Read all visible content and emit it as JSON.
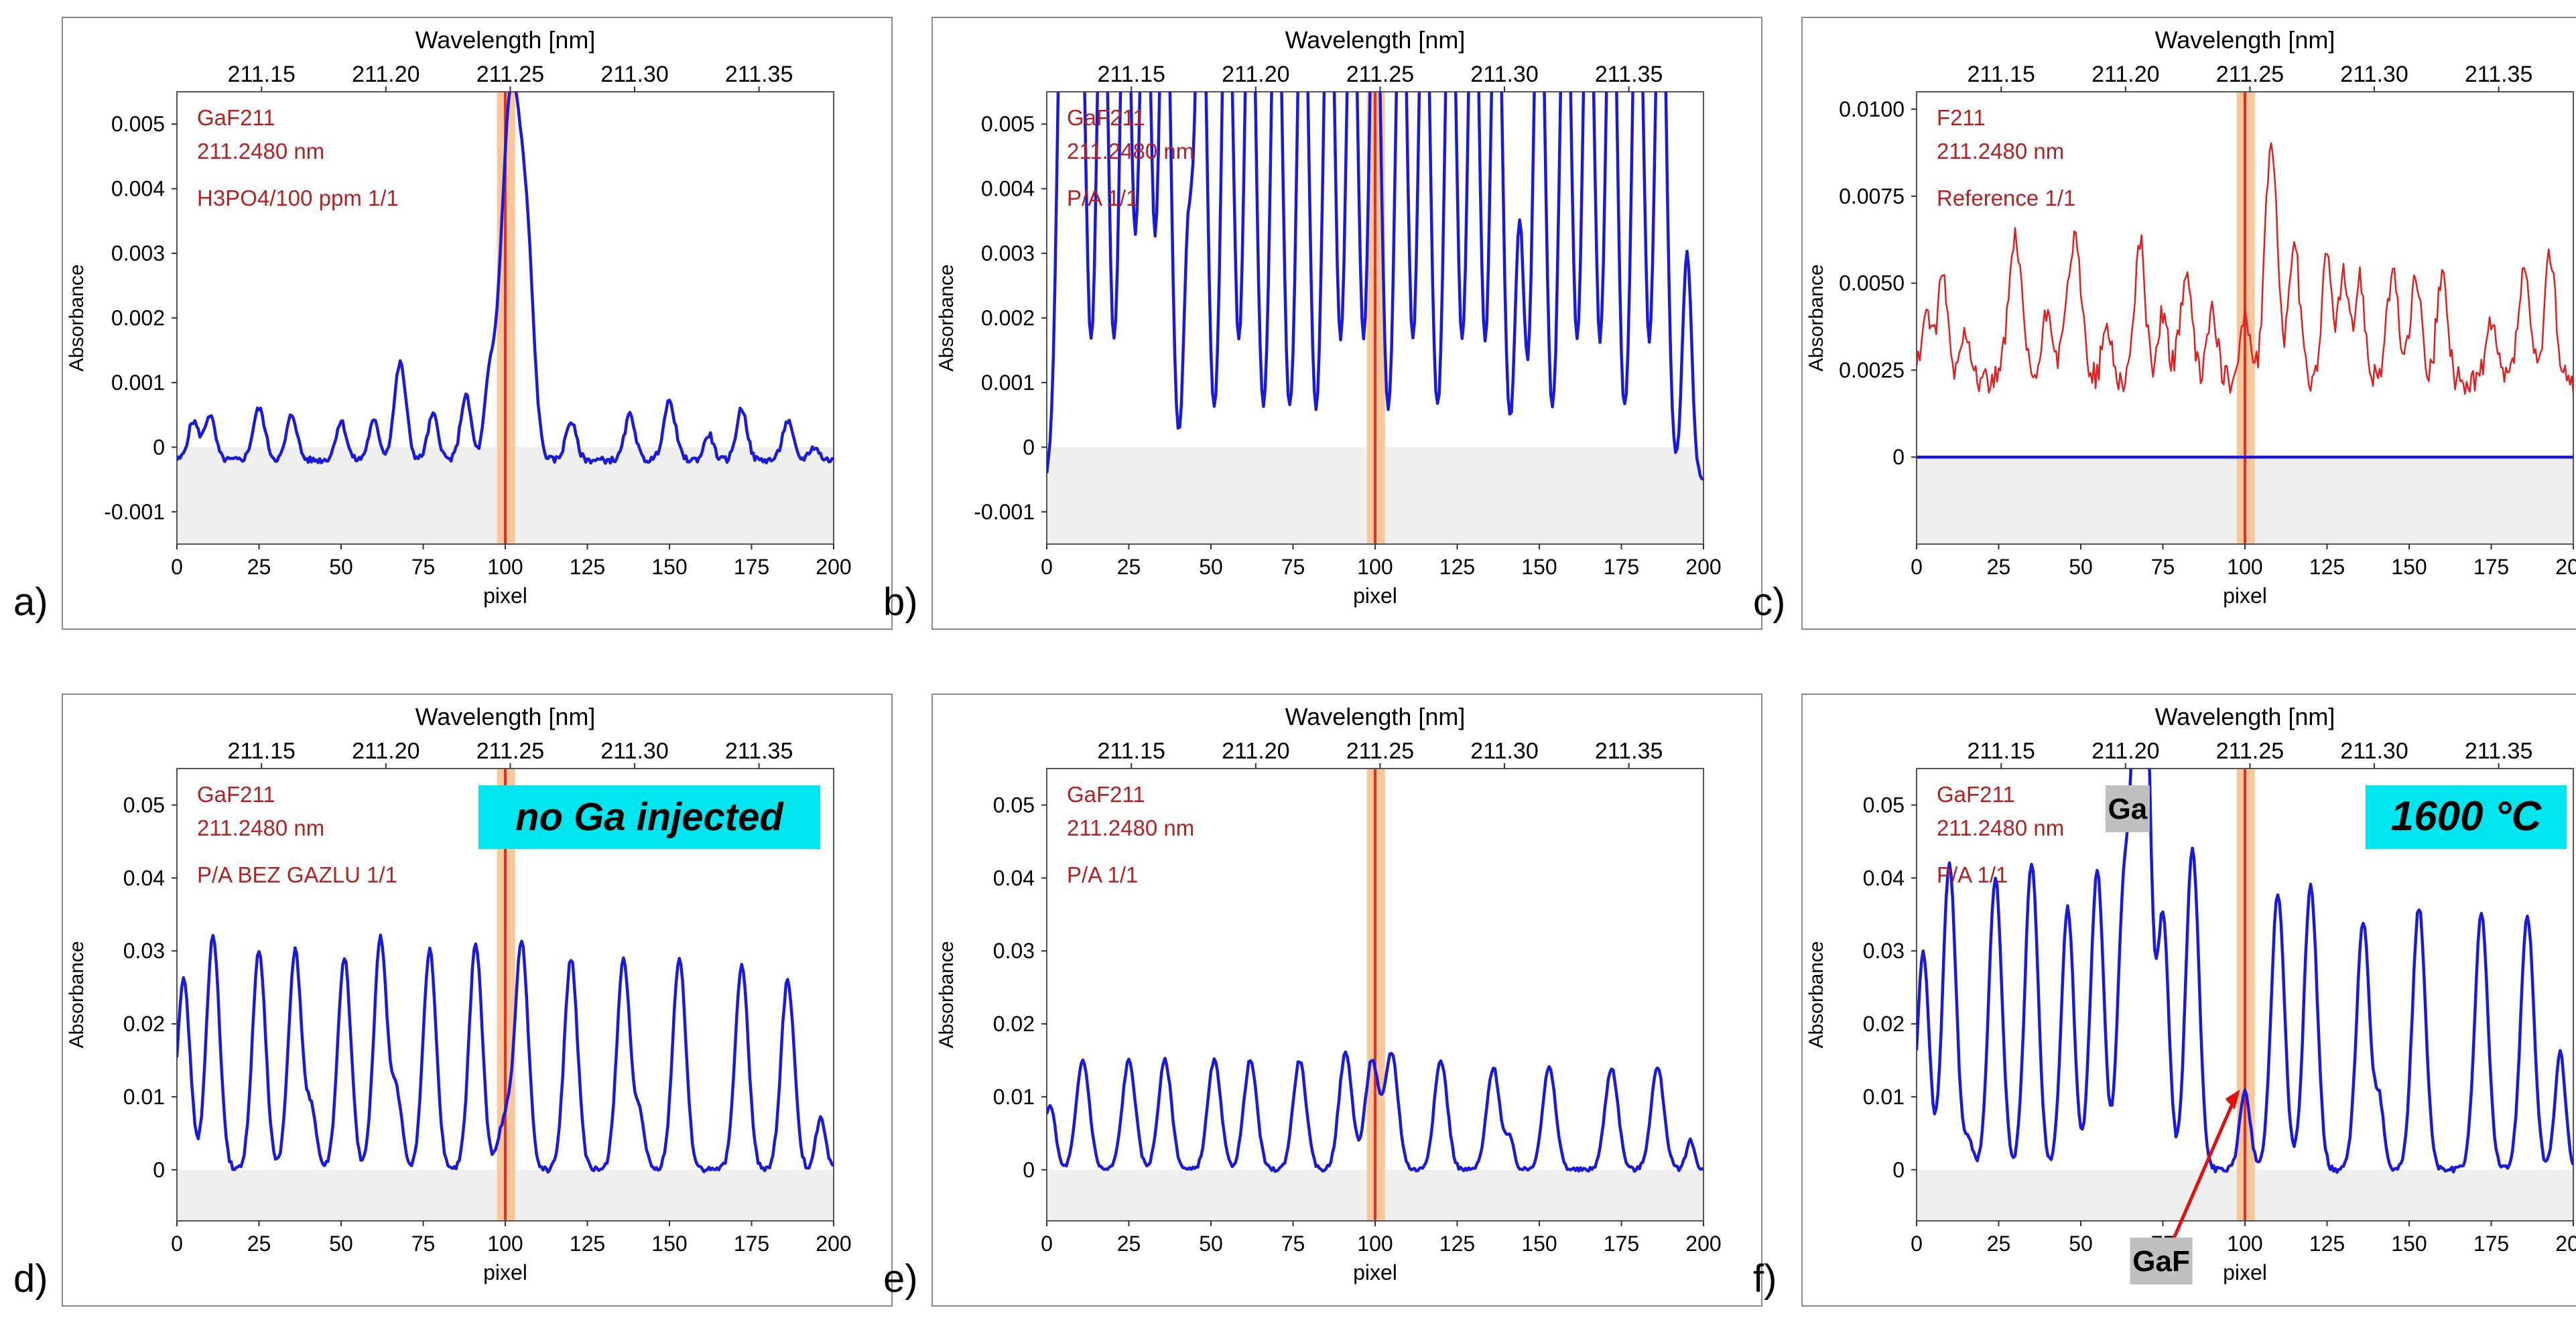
{
  "axes": {
    "top_label": "Wavelength [nm]",
    "bottom_label": "pixel",
    "y_label": "Absorbance",
    "wl_ticks": [
      "211.15",
      "211.20",
      "211.25",
      "211.30",
      "211.35"
    ],
    "x_ticks": [
      "0",
      "25",
      "50",
      "75",
      "100",
      "125",
      "150",
      "175",
      "200"
    ]
  },
  "colors": {
    "trace": "#1a1ad8",
    "ref_trace": "#e02020",
    "ann_text": "#b22222",
    "band": "#f9c79a",
    "marker": "#e0302a",
    "baseline_fill": "#efefef"
  },
  "chart_data": [
    {
      "panel": "a)",
      "type": "line",
      "title": "Wavelength [nm]",
      "xlabel": "pixel",
      "ylabel": "Absorbance",
      "ann": [
        "GaF211",
        "211.2480 nm",
        "H3PO4/100 ppm 1/1"
      ],
      "ylim": [
        -0.0015,
        0.0055
      ],
      "xlim": [
        0,
        200
      ],
      "yticks": [
        -0.001,
        0,
        0.001,
        0.002,
        0.003,
        0.004,
        0.005
      ],
      "ytick_labels": [
        "-0.001",
        "0",
        "0.001",
        "0.002",
        "0.003",
        "0.004",
        "0.005"
      ],
      "series": [
        {
          "name": "GaF211",
          "base": -0.0002,
          "noise": 5e-05,
          "peaks": [
            [
              5,
              0.0006,
              1.6
            ],
            [
              10,
              0.0007,
              1.6
            ],
            [
              25,
              0.0008,
              1.8
            ],
            [
              35,
              0.0007,
              1.6
            ],
            [
              50,
              0.0006,
              1.6
            ],
            [
              60,
              0.0006,
              1.6
            ],
            [
              68,
              0.0015,
              1.8
            ],
            [
              78,
              0.0007,
              1.6
            ],
            [
              88,
              0.001,
              1.6
            ],
            [
              95,
              0.0009,
              1.5
            ],
            [
              102,
              0.0058,
              3.2
            ],
            [
              107,
              0.002,
              2.0
            ],
            [
              120,
              0.0006,
              1.6
            ],
            [
              138,
              0.0007,
              1.6
            ],
            [
              150,
              0.0009,
              1.8
            ],
            [
              162,
              0.0004,
              1.4
            ],
            [
              172,
              0.0008,
              1.6
            ],
            [
              186,
              0.0006,
              1.6
            ],
            [
              194,
              0.0002,
              1.5
            ]
          ]
        }
      ]
    },
    {
      "panel": "b)",
      "type": "line",
      "title": "Wavelength [nm]",
      "xlabel": "pixel",
      "ylabel": "Absorbance",
      "ann": [
        "GaF211",
        "211.2480 nm",
        "P/A 1/1"
      ],
      "ylim": [
        -0.0015,
        0.0055
      ],
      "xlim": [
        0,
        200
      ],
      "yticks": [
        -0.001,
        0,
        0.001,
        0.002,
        0.003,
        0.004,
        0.005
      ],
      "ytick_labels": [
        "-0.001",
        "0",
        "0.001",
        "0.002",
        "0.003",
        "0.004",
        "0.005"
      ],
      "series": [
        {
          "name": "GaF211",
          "base": -0.0005,
          "noise": 5e-05,
          "peaks": [
            [
              5,
              0.009,
              1.7
            ],
            [
              10,
              0.009,
              1.7
            ],
            [
              17,
              0.009,
              1.7
            ],
            [
              24,
              0.009,
              1.7
            ],
            [
              30,
              0.009,
              1.7
            ],
            [
              36,
              0.009,
              1.7
            ],
            [
              43,
              0.0035,
              1.3
            ],
            [
              47,
              0.009,
              1.7
            ],
            [
              55,
              0.009,
              1.7
            ],
            [
              62,
              0.009,
              1.7
            ],
            [
              70,
              0.009,
              1.7
            ],
            [
              78,
              0.009,
              1.7
            ],
            [
              86,
              0.009,
              1.7
            ],
            [
              93,
              0.009,
              1.7
            ],
            [
              100,
              0.009,
              1.7
            ],
            [
              108,
              0.009,
              1.7
            ],
            [
              115,
              0.009,
              1.7
            ],
            [
              123,
              0.009,
              1.7
            ],
            [
              130,
              0.009,
              1.7
            ],
            [
              137,
              0.009,
              1.7
            ],
            [
              144,
              0.004,
              1.4
            ],
            [
              150,
              0.009,
              1.7
            ],
            [
              158,
              0.009,
              1.7
            ],
            [
              165,
              0.009,
              1.7
            ],
            [
              172,
              0.009,
              1.7
            ],
            [
              180,
              0.009,
              1.7
            ],
            [
              187,
              0.009,
              1.7
            ],
            [
              195,
              0.0035,
              1.4
            ]
          ]
        }
      ]
    },
    {
      "panel": "c)",
      "type": "line",
      "title": "Wavelength [nm]",
      "xlabel": "pixel",
      "ylabel": "Absorbance",
      "ann": [
        "F211",
        "211.2480 nm",
        "Reference 1/1"
      ],
      "ylim": [
        -0.0025,
        0.0105
      ],
      "xlim": [
        0,
        200
      ],
      "yticks": [
        0,
        0.0025,
        0.005,
        0.0075,
        0.01
      ],
      "ytick_labels": [
        "0",
        "0.0025",
        "0.0050",
        "0.0075",
        "0.0100"
      ],
      "series": [
        {
          "name": "Reference",
          "base": 0.0,
          "noise": 0.0,
          "flat": true
        },
        {
          "name": "F211 reference",
          "base": 0.0022,
          "noise": 0.0004,
          "color": "ref",
          "peaks": [
            [
              3,
              0.002,
              1.5
            ],
            [
              8,
              0.003,
              1.5
            ],
            [
              15,
              0.0015,
              1.5
            ],
            [
              30,
              0.004,
              2.0
            ],
            [
              40,
              0.002,
              1.6
            ],
            [
              48,
              0.004,
              2.2
            ],
            [
              58,
              0.0015,
              1.5
            ],
            [
              68,
              0.004,
              1.6
            ],
            [
              75,
              0.002,
              1.5
            ],
            [
              82,
              0.003,
              1.8
            ],
            [
              90,
              0.002,
              1.5
            ],
            [
              100,
              0.0018,
              1.6
            ],
            [
              108,
              0.007,
              1.8
            ],
            [
              115,
              0.004,
              1.6
            ],
            [
              125,
              0.0035,
              1.6
            ],
            [
              130,
              0.003,
              1.5
            ],
            [
              135,
              0.003,
              1.5
            ],
            [
              145,
              0.003,
              1.8
            ],
            [
              152,
              0.003,
              1.6
            ],
            [
              160,
              0.003,
              1.6
            ],
            [
              175,
              0.0015,
              1.6
            ],
            [
              185,
              0.003,
              1.8
            ],
            [
              193,
              0.0037,
              1.6
            ]
          ]
        }
      ]
    },
    {
      "panel": "d)",
      "type": "line",
      "title": "Wavelength [nm]",
      "xlabel": "pixel",
      "ylabel": "Absorbance",
      "ann": [
        "GaF211",
        "211.2480 nm",
        "P/A BEZ GAZLU 1/1"
      ],
      "badge": "no Ga injected",
      "ylim": [
        -0.007,
        0.055
      ],
      "xlim": [
        0,
        200
      ],
      "yticks": [
        0,
        0.01,
        0.02,
        0.03,
        0.04,
        0.05
      ],
      "ytick_labels": [
        "0",
        "0.01",
        "0.02",
        "0.03",
        "0.04",
        "0.05"
      ],
      "series": [
        {
          "name": "GaF211",
          "base": 0.0,
          "noise": 0.0004,
          "peaks": [
            [
              2,
              0.026,
              2.0
            ],
            [
              11,
              0.032,
              2.0
            ],
            [
              25,
              0.03,
              2.0
            ],
            [
              36,
              0.03,
              2.0
            ],
            [
              41,
              0.008,
              1.5
            ],
            [
              51,
              0.029,
              2.0
            ],
            [
              62,
              0.032,
              2.0
            ],
            [
              67,
              0.01,
              1.6
            ],
            [
              77,
              0.03,
              2.0
            ],
            [
              91,
              0.031,
              2.0
            ],
            [
              100,
              0.007,
              2.0
            ],
            [
              105,
              0.031,
              2.0
            ],
            [
              120,
              0.029,
              2.0
            ],
            [
              136,
              0.029,
              2.0
            ],
            [
              141,
              0.007,
              1.5
            ],
            [
              153,
              0.029,
              2.0
            ],
            [
              172,
              0.028,
              2.0
            ],
            [
              186,
              0.026,
              2.0
            ],
            [
              196,
              0.007,
              1.5
            ]
          ]
        }
      ]
    },
    {
      "panel": "e)",
      "type": "line",
      "title": "Wavelength [nm]",
      "xlabel": "pixel",
      "ylabel": "Absorbance",
      "ann": [
        "GaF211",
        "211.2480 nm",
        "P/A 1/1"
      ],
      "ylim": [
        -0.007,
        0.055
      ],
      "xlim": [
        0,
        200
      ],
      "yticks": [
        0,
        0.01,
        0.02,
        0.03,
        0.04,
        0.05
      ],
      "ytick_labels": [
        "0",
        "0.01",
        "0.02",
        "0.03",
        "0.04",
        "0.05"
      ],
      "series": [
        {
          "name": "GaF211",
          "base": 0.0,
          "noise": 0.0003,
          "peaks": [
            [
              1,
              0.009,
              1.6
            ],
            [
              11,
              0.015,
              2.0
            ],
            [
              25,
              0.015,
              2.0
            ],
            [
              36,
              0.015,
              2.0
            ],
            [
              51,
              0.015,
              2.0
            ],
            [
              62,
              0.015,
              2.0
            ],
            [
              77,
              0.015,
              2.0
            ],
            [
              91,
              0.016,
              2.0
            ],
            [
              99,
              0.015,
              2.0
            ],
            [
              105,
              0.016,
              2.0
            ],
            [
              120,
              0.015,
              2.0
            ],
            [
              136,
              0.014,
              2.0
            ],
            [
              141,
              0.004,
              1.3
            ],
            [
              153,
              0.014,
              2.0
            ],
            [
              172,
              0.014,
              2.0
            ],
            [
              186,
              0.014,
              2.0
            ],
            [
              196,
              0.004,
              1.3
            ]
          ]
        }
      ]
    },
    {
      "panel": "f)",
      "type": "line",
      "title": "Wavelength [nm]",
      "xlabel": "pixel",
      "ylabel": "Absorbance",
      "ann": [
        "GaF211",
        "211.2480 nm",
        "P/A 1/1"
      ],
      "badge": "1600 °C",
      "peak_labels": [
        "Ga",
        "GaF"
      ],
      "ylim": [
        -0.007,
        0.055
      ],
      "xlim": [
        0,
        200
      ],
      "yticks": [
        0,
        0.01,
        0.02,
        0.03,
        0.04,
        0.05
      ],
      "ytick_labels": [
        "0",
        "0.01",
        "0.02",
        "0.03",
        "0.04",
        "0.05"
      ],
      "series": [
        {
          "name": "GaF211",
          "base": 0.0,
          "noise": 0.0004,
          "peaks": [
            [
              2,
              0.03,
              1.8
            ],
            [
              10,
              0.042,
              2.0
            ],
            [
              16,
              0.004,
              1.3
            ],
            [
              24,
              0.04,
              2.0
            ],
            [
              35,
              0.042,
              2.0
            ],
            [
              46,
              0.036,
              1.9
            ],
            [
              55,
              0.041,
              2.0
            ],
            [
              63,
              0.036,
              1.8
            ],
            [
              67,
              0.06,
              1.8
            ],
            [
              70,
              0.055,
              1.6
            ],
            [
              75,
              0.035,
              1.8
            ],
            [
              84,
              0.044,
              2.0
            ],
            [
              100,
              0.011,
              1.6
            ],
            [
              110,
              0.038,
              2.0
            ],
            [
              120,
              0.039,
              2.0
            ],
            [
              136,
              0.034,
              2.0
            ],
            [
              141,
              0.009,
              1.4
            ],
            [
              153,
              0.036,
              2.0
            ],
            [
              172,
              0.035,
              2.0
            ],
            [
              186,
              0.035,
              2.0
            ],
            [
              196,
              0.016,
              1.6
            ]
          ]
        }
      ]
    }
  ]
}
